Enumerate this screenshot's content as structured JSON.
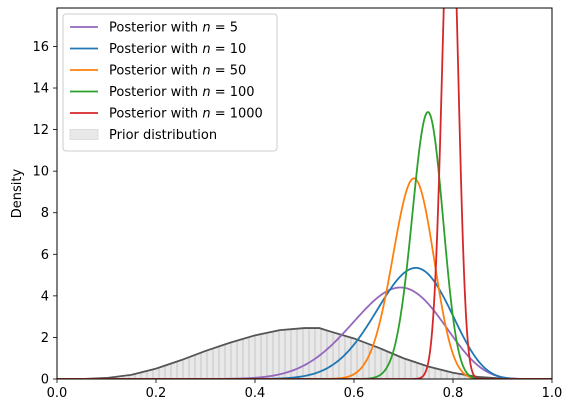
{
  "chart_data": {
    "type": "line",
    "title": "",
    "xlabel": "",
    "ylabel": "Density",
    "xlim": [
      0.0,
      1.0
    ],
    "ylim": [
      0,
      17.85
    ],
    "x_ticks": [
      "0.0",
      "0.2",
      "0.4",
      "0.6",
      "0.8",
      "1.0"
    ],
    "y_ticks": [
      "0",
      "2",
      "4",
      "6",
      "8",
      "10",
      "12",
      "14",
      "16"
    ],
    "grid": false,
    "legend_position": "top-left",
    "series": [
      {
        "name_prefix": "Posterior with ",
        "name_var": "n",
        "name_eq": " = ",
        "name_value": "5",
        "kind": "beta",
        "a": 18,
        "b": 8.5,
        "color": "#9467bd"
      },
      {
        "name_prefix": "Posterior with ",
        "name_var": "n",
        "name_eq": " = ",
        "name_value": "10",
        "kind": "beta",
        "a": 26,
        "b": 10.5,
        "color": "#1f77b4"
      },
      {
        "name_prefix": "Posterior with ",
        "name_var": "n",
        "name_eq": " = ",
        "name_value": "50",
        "kind": "beta",
        "a": 85,
        "b": 33.5,
        "color": "#ff7f0e"
      },
      {
        "name_prefix": "Posterior with ",
        "name_var": "n",
        "name_eq": " = ",
        "name_value": "100",
        "kind": "beta",
        "a": 146,
        "b": 49.5,
        "color": "#2ca02c"
      },
      {
        "name_prefix": "Posterior with ",
        "name_var": "n",
        "name_eq": " = ",
        "name_value": "1000",
        "kind": "beta",
        "a": 496,
        "b": 129,
        "color": "#d62728"
      }
    ],
    "prior": {
      "name": "Prior distribution",
      "fill": "#e8e8e8",
      "line": "#555555",
      "hatch": "#b0b0b0",
      "x": [
        0.0,
        0.05,
        0.1,
        0.15,
        0.2,
        0.25,
        0.3,
        0.35,
        0.4,
        0.45,
        0.5,
        0.53,
        0.55,
        0.6,
        0.65,
        0.7,
        0.75,
        0.8,
        0.85,
        0.9,
        0.95,
        1.0
      ],
      "y": [
        0.0,
        0.0,
        0.05,
        0.2,
        0.5,
        0.9,
        1.35,
        1.75,
        2.1,
        2.35,
        2.45,
        2.45,
        2.3,
        1.95,
        1.5,
        1.0,
        0.6,
        0.3,
        0.1,
        0.02,
        0.0,
        0.0
      ]
    }
  }
}
